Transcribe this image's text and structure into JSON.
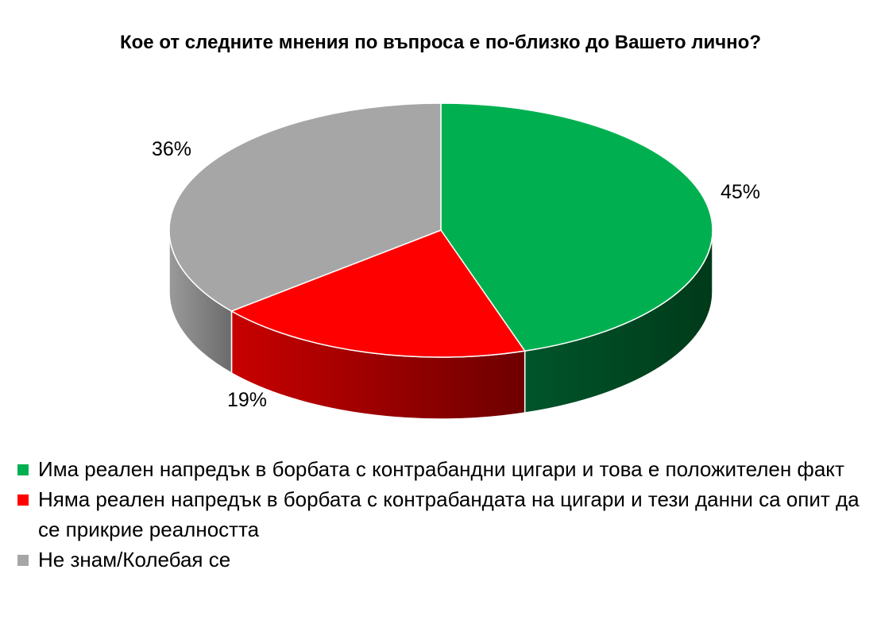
{
  "chart_data": {
    "type": "pie",
    "title": "Кое от следните мнения по въпроса е по-близко до Вашето лично?",
    "series": [
      {
        "name": "Има реален напредък в борбата с контрабандни цигари и това е положителен факт",
        "value": 45,
        "label": "45%",
        "color": "#00b050",
        "side_color": "#00401d"
      },
      {
        "name": "Няма реален напредък в борбата с контрабандата на цигари и тези данни са опит да се прикрие реалността",
        "value": 19,
        "label": "19%",
        "color": "#ff0000",
        "side_color": "#8a0000"
      },
      {
        "name": "Не знам/Колебая се",
        "value": 36,
        "label": "36%",
        "color": "#a6a6a6",
        "side_color": "#7a7a7a"
      }
    ],
    "legend_position": "bottom",
    "style": "3d"
  }
}
